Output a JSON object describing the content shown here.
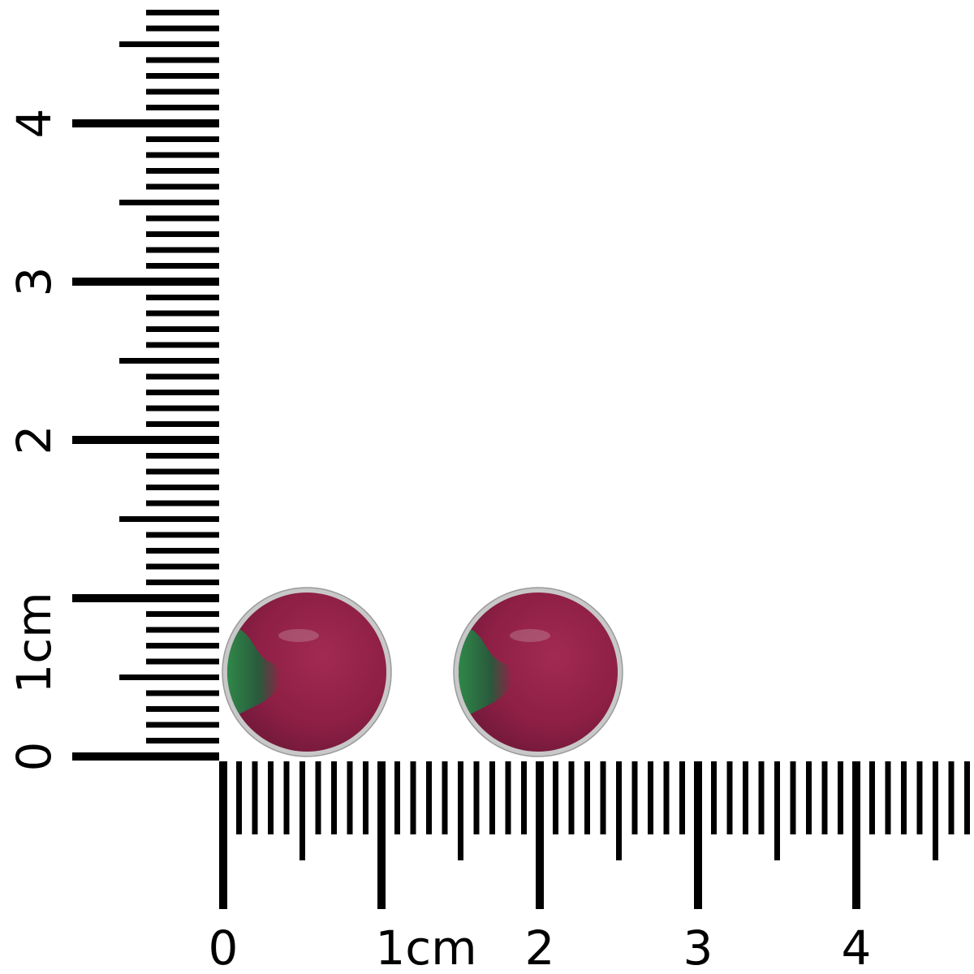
{
  "ruler": {
    "unit": "cm",
    "vertical_labels": [
      "0",
      "1cm",
      "2",
      "3",
      "4"
    ],
    "horizontal_labels": [
      "0",
      "1cm",
      "2",
      "3",
      "4"
    ],
    "ink_color": "#000000"
  },
  "product": {
    "item_count": 2,
    "shape": "round",
    "stone_colors": {
      "ruby": "#8e1f45",
      "zoisite": "#2e7a45"
    },
    "bezel_color": "#c8c8c8"
  }
}
